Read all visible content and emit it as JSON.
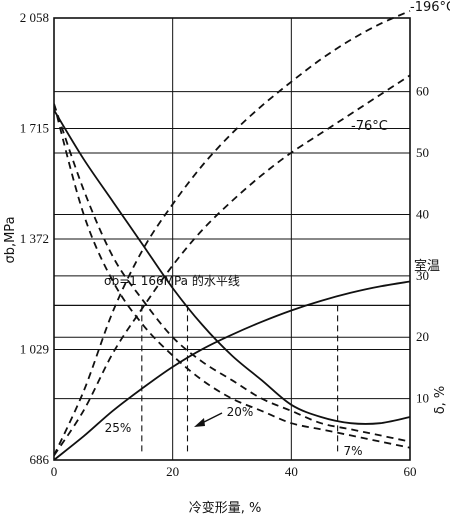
{
  "chart_data": {
    "type": "line",
    "title": "",
    "xlabel": "冷变形量, %",
    "ylabel_left": "σb,MPa",
    "ylabel_right": "δ, %",
    "xlim": [
      0,
      60
    ],
    "ylim_left": [
      686,
      2058
    ],
    "ylim_right": [
      0,
      72
    ],
    "x_ticks": [
      "0",
      "20",
      "40",
      "60"
    ],
    "y_left_ticks": [
      "686",
      "1 029",
      "1 372",
      "1 715",
      "2 058"
    ],
    "y_right_ticks": [
      "10",
      "20",
      "30",
      "40",
      "50",
      "60"
    ],
    "grid": true,
    "series": [
      {
        "name": "-196°C",
        "axis": "left",
        "style": "dashed",
        "x": [
          0,
          5,
          10,
          15,
          20,
          25,
          30,
          35,
          40,
          45,
          50,
          55,
          60
        ],
        "y": [
          700,
          900,
          1150,
          1340,
          1480,
          1600,
          1700,
          1785,
          1860,
          1930,
          1990,
          2040,
          2080
        ]
      },
      {
        "name": "-76°C",
        "axis": "left",
        "style": "dashed",
        "x": [
          0,
          5,
          10,
          15,
          20,
          25,
          30,
          35,
          40,
          45,
          50,
          55,
          60
        ],
        "y": [
          700,
          840,
          1020,
          1160,
          1290,
          1400,
          1490,
          1570,
          1640,
          1700,
          1760,
          1820,
          1880
        ]
      },
      {
        "name": "室温",
        "axis": "left",
        "style": "solid",
        "x": [
          0,
          5,
          10,
          15,
          20,
          25,
          30,
          35,
          40,
          45,
          50,
          55,
          60
        ],
        "y": [
          686,
          760,
          840,
          910,
          975,
          1030,
          1075,
          1115,
          1150,
          1180,
          1205,
          1225,
          1240
        ]
      },
      {
        "name": "δ 室温",
        "axis": "right",
        "style": "solid",
        "x": [
          0,
          5,
          10,
          15,
          20,
          25,
          30,
          35,
          40,
          45,
          50,
          55,
          60
        ],
        "y": [
          57,
          49,
          42,
          35,
          28,
          22,
          17,
          13,
          9,
          7,
          6,
          6,
          7
        ]
      },
      {
        "name": "δ -76°C",
        "axis": "right",
        "style": "dashed",
        "x": [
          0,
          5,
          10,
          15,
          20,
          25,
          30,
          35,
          40,
          45,
          50,
          55,
          60
        ],
        "y": [
          58,
          44,
          33,
          26,
          20,
          16,
          13,
          10,
          8,
          6,
          5,
          4,
          3
        ]
      },
      {
        "name": "δ -196°C",
        "axis": "right",
        "style": "dashed",
        "x": [
          0,
          5,
          10,
          15,
          20,
          25,
          30,
          35,
          40,
          45,
          50,
          55,
          60
        ],
        "y": [
          58,
          40,
          29,
          22,
          17,
          13,
          10,
          8,
          6,
          5,
          4,
          3,
          2
        ]
      }
    ],
    "horizontal_line": {
      "label": "σb=1 166MPa 的水平线",
      "y": 1166,
      "x_from": 0,
      "x_to": 60,
      "drops": [
        14.8,
        22.5,
        47.8
      ]
    },
    "annotations": [
      {
        "text": "25%",
        "x": 14.8
      },
      {
        "text": "20%",
        "x": 22.5
      },
      {
        "text": "7%",
        "x": 47.8
      }
    ]
  }
}
